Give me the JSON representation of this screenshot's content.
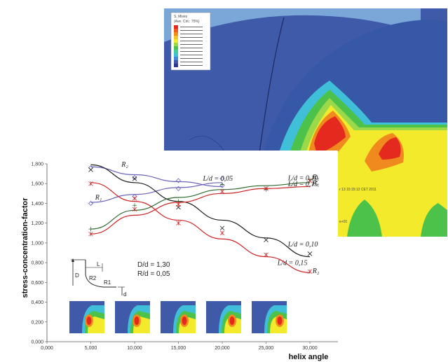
{
  "background_render": {
    "legend_lines": [
      "S, Mises",
      "(Ave. Crit.: 75%)"
    ],
    "overlay_text_1": "r 13 15:15:13 CET 2011",
    "overlay_text_2": "e+01",
    "colors": {
      "dark_blue": "#3e5aa8",
      "mid_blue": "#2a4fa0",
      "red": "#e42a1e",
      "orange": "#f08a1e",
      "yellow": "#f2ea2a",
      "green": "#4cc24a",
      "cyan": "#3fc0d8"
    }
  },
  "parameters": {
    "dd": "D/d = 1,30",
    "rd": "R/d = 0,05"
  },
  "geometry_labels": {
    "D": "D",
    "R2": "R2",
    "L": "L",
    "R1": "R1",
    "d": "d"
  },
  "curve_labels": [
    {
      "text": "R₂",
      "x": 8.5,
      "y": 1.77
    },
    {
      "text": "R₁",
      "x": 5.5,
      "y": 1.44
    },
    {
      "text": "L/d = 0,05",
      "x": 17.8,
      "y": 1.63
    },
    {
      "text": "L/d = 0,10",
      "x": 27.5,
      "y": 1.635
    },
    {
      "text": "R₁",
      "x": 30.3,
      "y": 1.645
    },
    {
      "text": "L/d = 0,15",
      "x": 27.5,
      "y": 1.575
    },
    {
      "text": "R₁",
      "x": 30.3,
      "y": 1.585
    },
    {
      "text": "L/d = 0,10",
      "x": 27.5,
      "y": 0.965
    },
    {
      "text": "L/d = 0,15",
      "x": 26.3,
      "y": 0.775
    },
    {
      "text": "R₂",
      "x": 30.3,
      "y": 0.695
    }
  ],
  "chart_data": {
    "type": "line",
    "xlabel": "helix angle",
    "ylabel": "stress-concentration-factor",
    "xlim": [
      0,
      32
    ],
    "ylim": [
      0,
      1.8
    ],
    "xticks": [
      "0,000",
      "5,000",
      "10,000",
      "15,000",
      "20,000",
      "25,000",
      "30,000"
    ],
    "yticks": [
      "0,000",
      "0,200",
      "0,400",
      "0,600",
      "0,800",
      "1,000",
      "1,200",
      "1,400",
      "1,600",
      "1,800"
    ],
    "series": [
      {
        "color": "#6a63b8",
        "marker": "diamond",
        "x": [
          5,
          10,
          15,
          20
        ],
        "y": [
          1.76,
          1.66,
          1.63,
          1.65
        ],
        "fit_y": [
          1.77,
          1.69,
          1.62,
          1.57
        ]
      },
      {
        "color": "#6a63b8",
        "marker": "diamond",
        "x": [
          5,
          10,
          15,
          20
        ],
        "y": [
          1.4,
          1.47,
          1.55,
          1.58
        ],
        "fit_y": [
          1.41,
          1.49,
          1.56,
          1.61
        ]
      },
      {
        "color": "#1e1e1e",
        "marker": "x",
        "x": [
          5,
          10,
          15,
          20,
          25,
          30
        ],
        "y": [
          1.74,
          1.65,
          1.36,
          1.15,
          1.03,
          0.89
        ],
        "fit_y": [
          1.79,
          1.61,
          1.42,
          1.23,
          1.05,
          0.86
        ]
      },
      {
        "color": "#cc2222",
        "marker": "star",
        "x": [
          5,
          10,
          15,
          20,
          25,
          30
        ],
        "y": [
          1.6,
          1.45,
          1.2,
          1.1,
          0.88,
          0.71
        ],
        "fit_y": [
          1.61,
          1.42,
          1.23,
          1.04,
          0.86,
          0.7
        ]
      },
      {
        "color": "#2e6b2e",
        "marker": "plus",
        "x": [
          5,
          10,
          15,
          20,
          25,
          30
        ],
        "y": [
          1.14,
          1.38,
          1.42,
          1.59,
          1.54,
          1.64
        ],
        "fit_y": [
          1.14,
          1.33,
          1.46,
          1.54,
          1.58,
          1.61
        ]
      },
      {
        "color": "#cc2222",
        "marker": "star",
        "x": [
          5,
          10,
          15,
          20,
          25,
          30
        ],
        "y": [
          1.09,
          1.34,
          1.39,
          1.52,
          1.55,
          1.63
        ],
        "fit_y": [
          1.09,
          1.28,
          1.41,
          1.5,
          1.55,
          1.57
        ]
      }
    ]
  }
}
